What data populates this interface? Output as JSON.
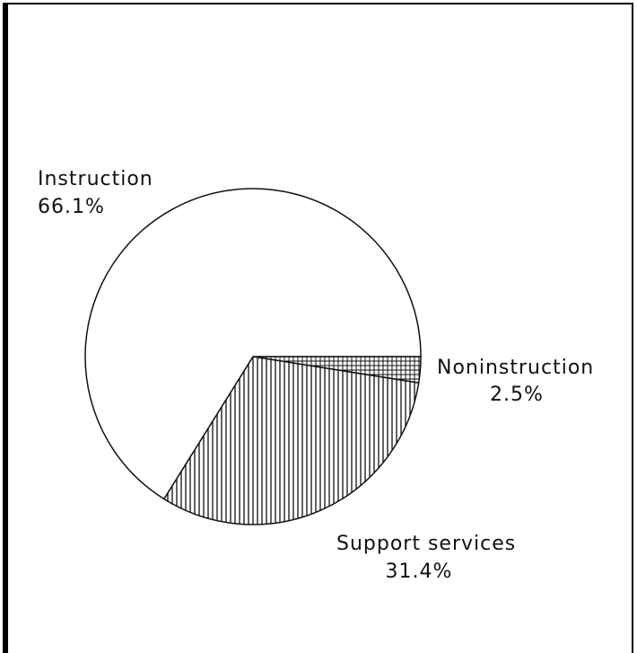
{
  "chart_data": {
    "type": "pie",
    "categories": [
      "Noninstruction",
      "Support services",
      "Instruction"
    ],
    "values": [
      2.5,
      31.4,
      66.1
    ],
    "value_labels": [
      "2.5%",
      "31.4%",
      "66.1%"
    ],
    "hatch": [
      "grid",
      "vertical",
      "none"
    ]
  }
}
